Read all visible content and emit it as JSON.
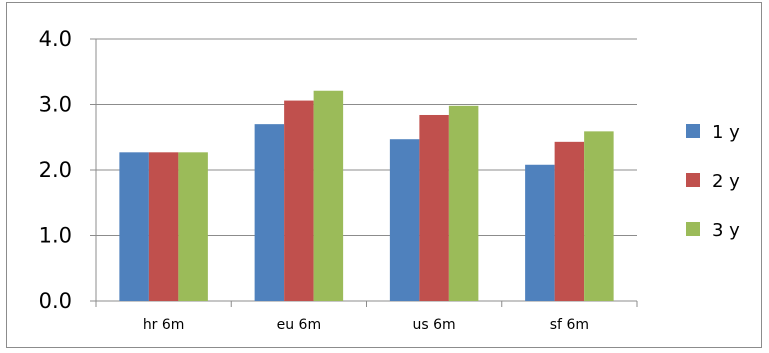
{
  "chart_data": {
    "type": "bar",
    "categories": [
      "hr 6m",
      "eu 6m",
      "us 6m",
      "sf 6m"
    ],
    "series": [
      {
        "name": "1 y",
        "values": [
          2.27,
          2.7,
          2.47,
          2.08
        ],
        "color": "#4f81bd"
      },
      {
        "name": "2 y",
        "values": [
          2.27,
          3.06,
          2.84,
          2.43
        ],
        "color": "#c0504d"
      },
      {
        "name": "3 y",
        "values": [
          2.27,
          3.21,
          2.98,
          2.59
        ],
        "color": "#9bbb59"
      }
    ],
    "ylim": [
      0,
      4
    ],
    "yticks": [
      "0.0",
      "1.0",
      "2.0",
      "3.0",
      "4.0"
    ],
    "grid": true,
    "legend_position": "right"
  }
}
